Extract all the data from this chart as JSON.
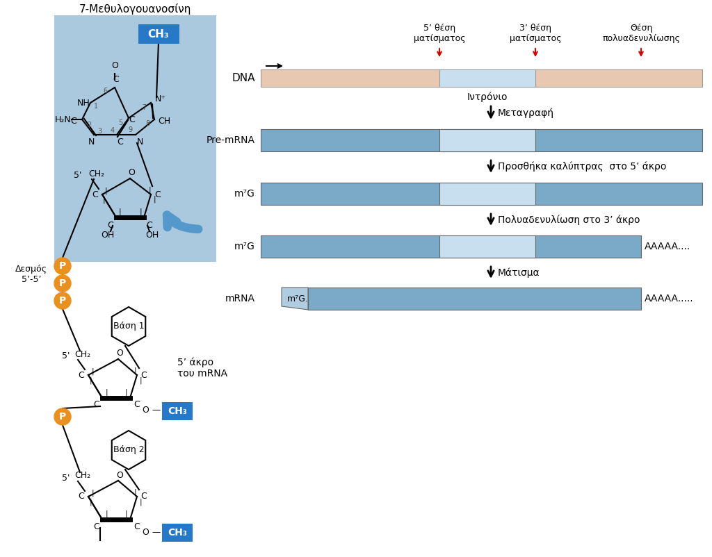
{
  "bg_color": "#ffffff",
  "blue_box_color": "#aac8de",
  "ch3_box_color": "#2878c8",
  "orange_color": "#e89020",
  "salmon_color": "#e8c8b0",
  "dark_blue_bar": "#7aaac8",
  "light_blue_bar": "#b0cce0",
  "intron_color": "#c8dff0",
  "red_color": "#cc0000",
  "title_7mg": "7-Μεθυλογουανοσίνη",
  "label_dna": "DNA",
  "label_premrna": "Pre-mRNA",
  "label_m7g": "m⁷G",
  "label_mrna": "mRNA",
  "label_intronion": "Ιντρόνιο",
  "label_metagrafi": "Μεταγραφή",
  "label_prosthiki": "Προσθήκα καλύπτρας  στο 5’ άκρο",
  "label_polyadenylwsi": "Πολυαδενυλίωση στο 3’ άκρο",
  "label_matisma": "Μάτισμα",
  "label_5thesi": "5’ θέση\nματίσματος",
  "label_3thesi": "3’ θέση\nματίσματος",
  "label_thesi_polya": "Θέση\nπολυαδενυλίωσης",
  "label_desmos": "Δεσμός\n5’-5’",
  "label_5akro": "5’ άκρο\nτου mRNA",
  "label_vasi1": "Βάση 1",
  "label_vasi2": "Βάση 2",
  "label_aaaaa1": "AAAAA....",
  "label_aaaaa2": "AAAAA.....",
  "label_m7c_mrna": "m⁷G."
}
